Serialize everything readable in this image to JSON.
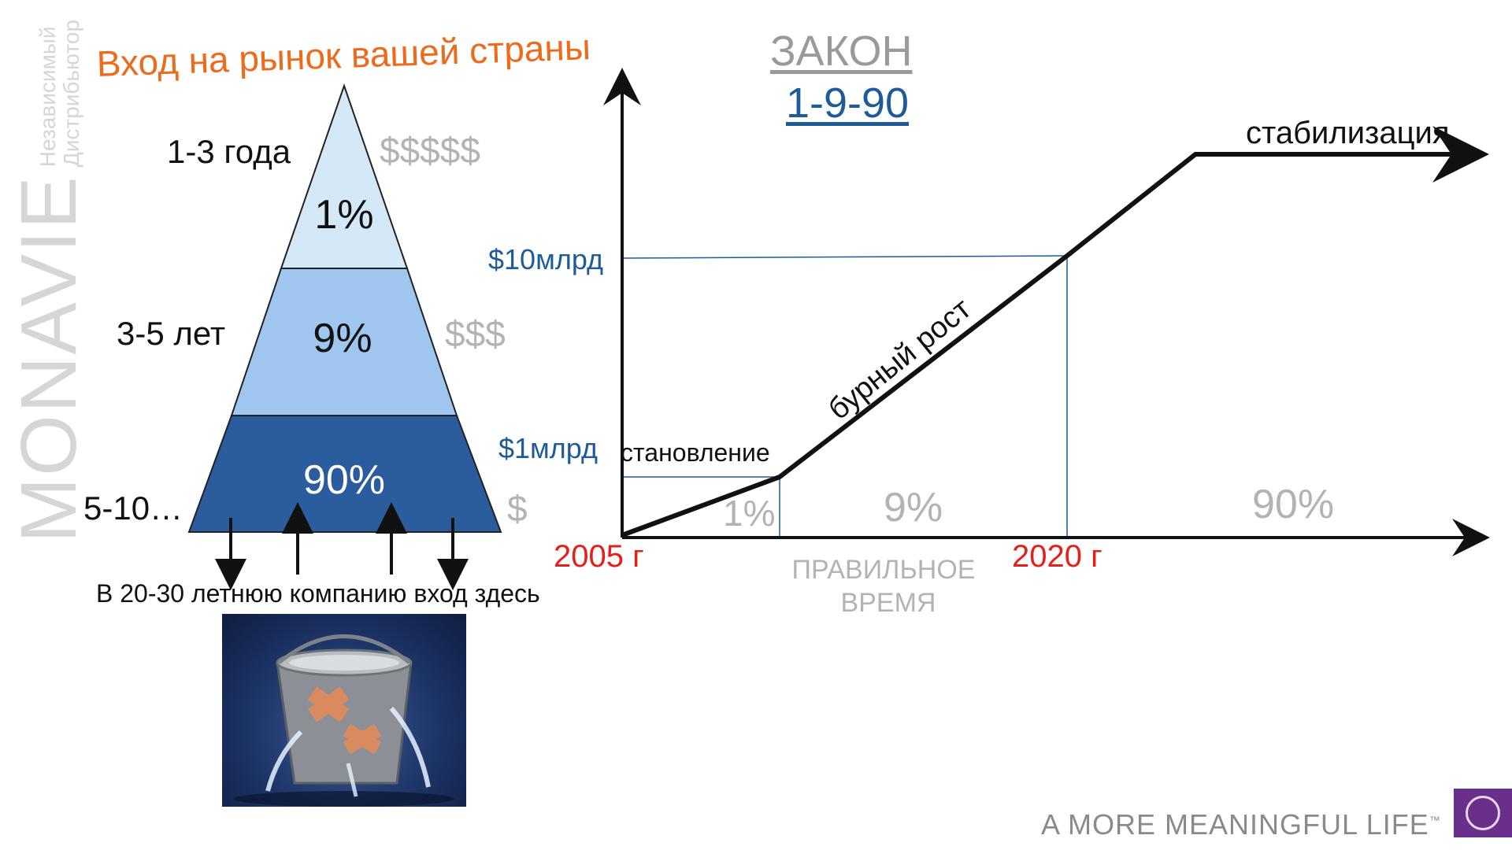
{
  "brand": {
    "name": "MONAVIE",
    "subtitle_line1": "Независимый",
    "subtitle_line2": "Дистрибьютор",
    "tagline": "A MORE MEANINGFUL LIFE",
    "tagline_mark": "™"
  },
  "pyramid": {
    "title": "Вход на рынок вашей страны",
    "levels": [
      {
        "percent": "1%",
        "period": "1-3 года",
        "money": "$$$$$"
      },
      {
        "percent": "9%",
        "period": "3-5 лет",
        "money": "$$$"
      },
      {
        "percent": "90%",
        "period": "5-10…",
        "money": "$"
      }
    ],
    "entry_note": "В 20-30 летнюю компанию вход здесь",
    "colors": {
      "top": "#d5e8f7",
      "middle": "#9fc6ee",
      "bottom": "#2b5c9e"
    }
  },
  "law": {
    "heading": "ЗАКОН",
    "numbers": "1-9-90"
  },
  "graph": {
    "y_labels": {
      "high": "$10млрд",
      "low": "$1млрд"
    },
    "x_labels": {
      "start": "2005 г",
      "end": "2020 г"
    },
    "phase_labels": {
      "formation": "становление",
      "growth": "бурный рост",
      "stabilization": "стабилизация"
    },
    "segment_percents": [
      "1%",
      "9%",
      "90%"
    ],
    "right_time_line1": "ПРАВИЛЬНОЕ",
    "right_time_line2": "ВРЕМЯ",
    "colors": {
      "guide": "#1f5b99",
      "line": "#111111",
      "red": "#e3201b",
      "gray": "#b3b3b3"
    }
  }
}
